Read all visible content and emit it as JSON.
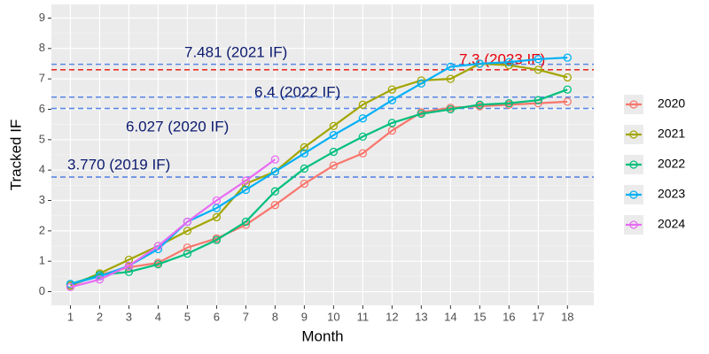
{
  "chart_data": {
    "type": "line",
    "x_label": "Month",
    "y_label": "Tracked IF",
    "x": [
      1,
      2,
      3,
      4,
      5,
      6,
      7,
      8,
      9,
      10,
      11,
      12,
      13,
      14,
      15,
      16,
      17,
      18
    ],
    "xlim": [
      0.35,
      18.9
    ],
    "xticks": [
      1,
      2,
      3,
      4,
      5,
      6,
      7,
      8,
      9,
      10,
      11,
      12,
      13,
      14,
      15,
      16,
      17,
      18
    ],
    "ylim": [
      -0.45,
      9.45
    ],
    "yticks": [
      0,
      1,
      2,
      3,
      4,
      5,
      6,
      7,
      8,
      9
    ],
    "grid": true,
    "legend": "right",
    "series": [
      {
        "name": "2020",
        "color": "#F8766D",
        "values": [
          0.2,
          0.55,
          0.8,
          0.95,
          1.45,
          1.75,
          2.2,
          2.85,
          3.55,
          4.15,
          4.55,
          5.3,
          5.9,
          6.05,
          6.1,
          6.15,
          6.2,
          6.25
        ]
      },
      {
        "name": "2021",
        "color": "#A3A500",
        "values": [
          0.2,
          0.6,
          1.05,
          1.5,
          2.0,
          2.45,
          3.55,
          3.95,
          4.75,
          5.45,
          6.15,
          6.65,
          6.95,
          7.0,
          7.5,
          7.45,
          7.3,
          7.05
        ]
      },
      {
        "name": "2022",
        "color": "#00BF7D",
        "values": [
          0.25,
          0.55,
          0.65,
          0.9,
          1.25,
          1.7,
          2.3,
          3.3,
          4.05,
          4.6,
          5.1,
          5.55,
          5.85,
          6.0,
          6.15,
          6.2,
          6.3,
          6.65
        ]
      },
      {
        "name": "2023",
        "color": "#00B0F6",
        "values": [
          0.25,
          0.5,
          0.85,
          1.4,
          2.3,
          2.75,
          3.35,
          3.95,
          4.55,
          5.15,
          5.7,
          6.3,
          6.85,
          7.4,
          7.5,
          7.55,
          7.65,
          7.7
        ]
      },
      {
        "name": "2024",
        "color": "#E76BF3",
        "values": [
          0.15,
          0.4,
          0.85,
          1.5,
          2.3,
          3.0,
          3.65,
          4.35,
          null,
          null,
          null,
          null,
          null,
          null,
          null,
          null,
          null,
          null
        ]
      }
    ],
    "reference_lines": [
      {
        "value": 7.481,
        "label": "7.481 (2021 IF)",
        "color": "#5b86e5",
        "label_color": "#0b1a6e"
      },
      {
        "value": 7.3,
        "label": "7.3 (2023 IF)",
        "color": "#e8302a",
        "label_color": "#e8000b"
      },
      {
        "value": 6.4,
        "label": "6.4 (2022 IF)",
        "color": "#5b86e5",
        "label_color": "#0b1a6e"
      },
      {
        "value": 6.027,
        "label": "6.027 (2020 IF)",
        "color": "#5b86e5",
        "label_color": "#0b1a6e"
      },
      {
        "value": 3.77,
        "label": "3.770 (2019 IF)",
        "color": "#5b86e5",
        "label_color": "#0b1a6e"
      }
    ]
  }
}
